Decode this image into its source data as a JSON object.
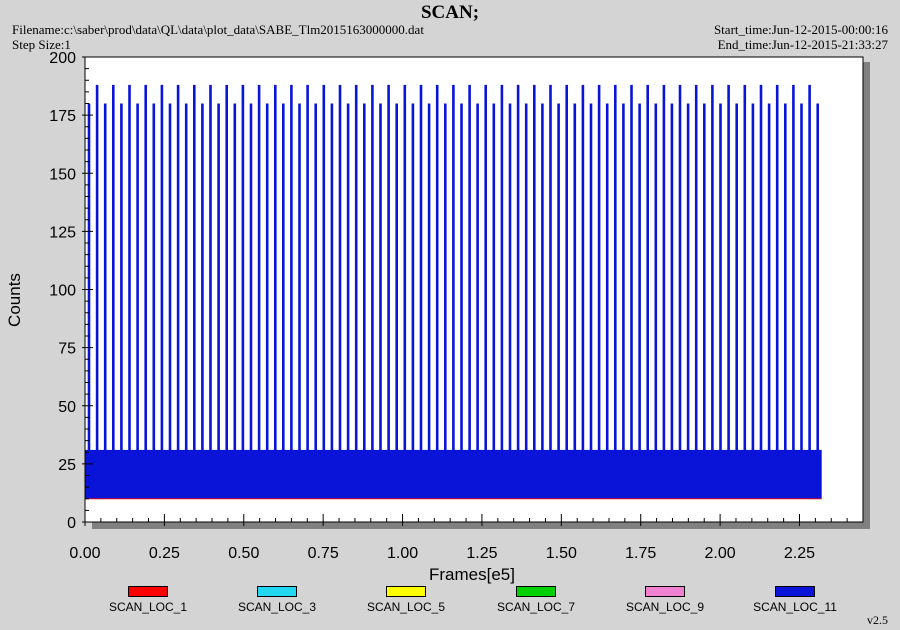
{
  "header": {
    "title": "SCAN;",
    "filename": "Filename:c:\\saber\\prod\\data\\QL\\data\\plot_data\\SABE_Tlm2015163000000.dat",
    "step_size": "Step Size:1",
    "start_time": "Start_time:Jun-12-2015-00:00:16",
    "end_time": "End_time:Jun-12-2015-21:33:27",
    "version": "v2.5"
  },
  "chart_data": {
    "type": "line",
    "xlabel": "Frames[e5]",
    "ylabel": "Counts",
    "xlim": [
      0,
      2.45
    ],
    "ylim": [
      0,
      200
    ],
    "x_ticks": [
      "0.00",
      "0.25",
      "0.50",
      "0.75",
      "1.00",
      "1.25",
      "1.50",
      "1.75",
      "2.00",
      "2.25"
    ],
    "y_ticks": [
      "0",
      "25",
      "50",
      "75",
      "100",
      "125",
      "150",
      "175",
      "200"
    ],
    "grid": false,
    "legend_position": "bottom",
    "data_extent": {
      "x_start": 0.0,
      "x_end": 2.32
    },
    "dense_band": {
      "low": 10,
      "high": 31
    },
    "spike_levels": [
      180,
      188
    ],
    "series": [
      {
        "name": "SCAN_LOC_1",
        "color": "#ff0000"
      },
      {
        "name": "SCAN_LOC_3",
        "color": "#22d8f0"
      },
      {
        "name": "SCAN_LOC_5",
        "color": "#ffff00"
      },
      {
        "name": "SCAN_LOC_7",
        "color": "#00d000"
      },
      {
        "name": "SCAN_LOC_9",
        "color": "#f080d0"
      },
      {
        "name": "SCAN_LOC_11",
        "color": "#0a14d8"
      }
    ]
  }
}
